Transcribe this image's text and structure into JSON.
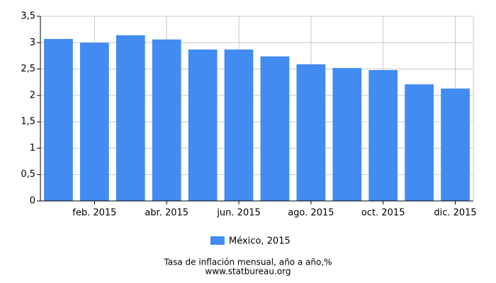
{
  "chart_data": {
    "type": "bar",
    "categories": [
      null,
      "feb. 2015",
      null,
      "abr. 2015",
      null,
      "jun. 2015",
      null,
      "ago. 2015",
      null,
      "oct. 2015",
      null,
      "dic. 2015"
    ],
    "series": [
      {
        "name": "México, 2015",
        "color": "#418bf1",
        "values": [
          3.07,
          3.0,
          3.14,
          3.06,
          2.87,
          2.87,
          2.74,
          2.59,
          2.52,
          2.48,
          2.21,
          2.13
        ]
      }
    ],
    "ylim": [
      0,
      3.5
    ],
    "yticks": [
      0,
      {
        "value": 0.5,
        "label": "0,5"
      },
      1,
      {
        "value": 1.5,
        "label": "1,5"
      },
      2,
      {
        "value": 2.5,
        "label": "2,5"
      },
      3,
      {
        "value": 3.5,
        "label": "3,5"
      }
    ],
    "grid": true,
    "legend": "bottom",
    "caption": "Tasa de inflación mensual, año a año,%",
    "source": "www.statbureau.org"
  }
}
